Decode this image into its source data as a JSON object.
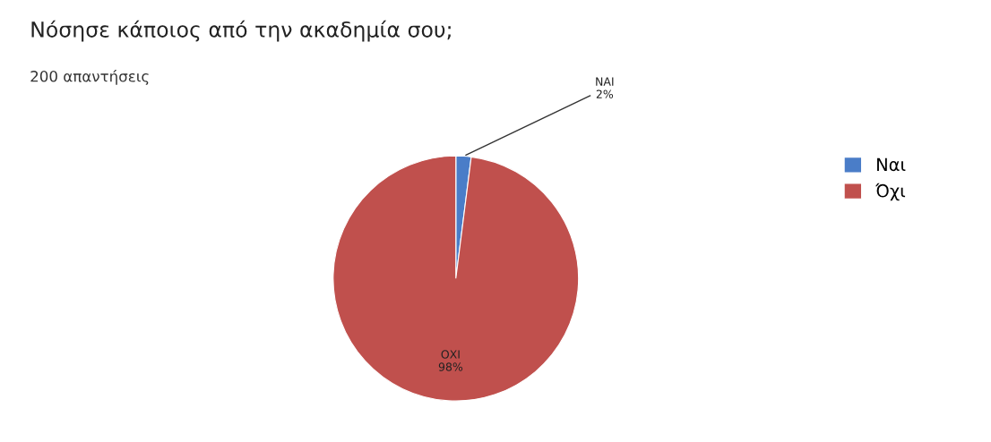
{
  "chart_data": {
    "type": "pie",
    "title": "Νόσησε κάποιος από την ακαδημία σου;",
    "subtitle": "200 απαντήσεις",
    "categories": [
      "Ναι",
      "Όχι"
    ],
    "values": [
      2,
      98
    ],
    "colors": [
      "#4a7dc8",
      "#c0504d"
    ],
    "value_labels": [
      "ΝΑΙ\n2%",
      "ΟΧΙ\n98%"
    ],
    "legend": "top right"
  }
}
